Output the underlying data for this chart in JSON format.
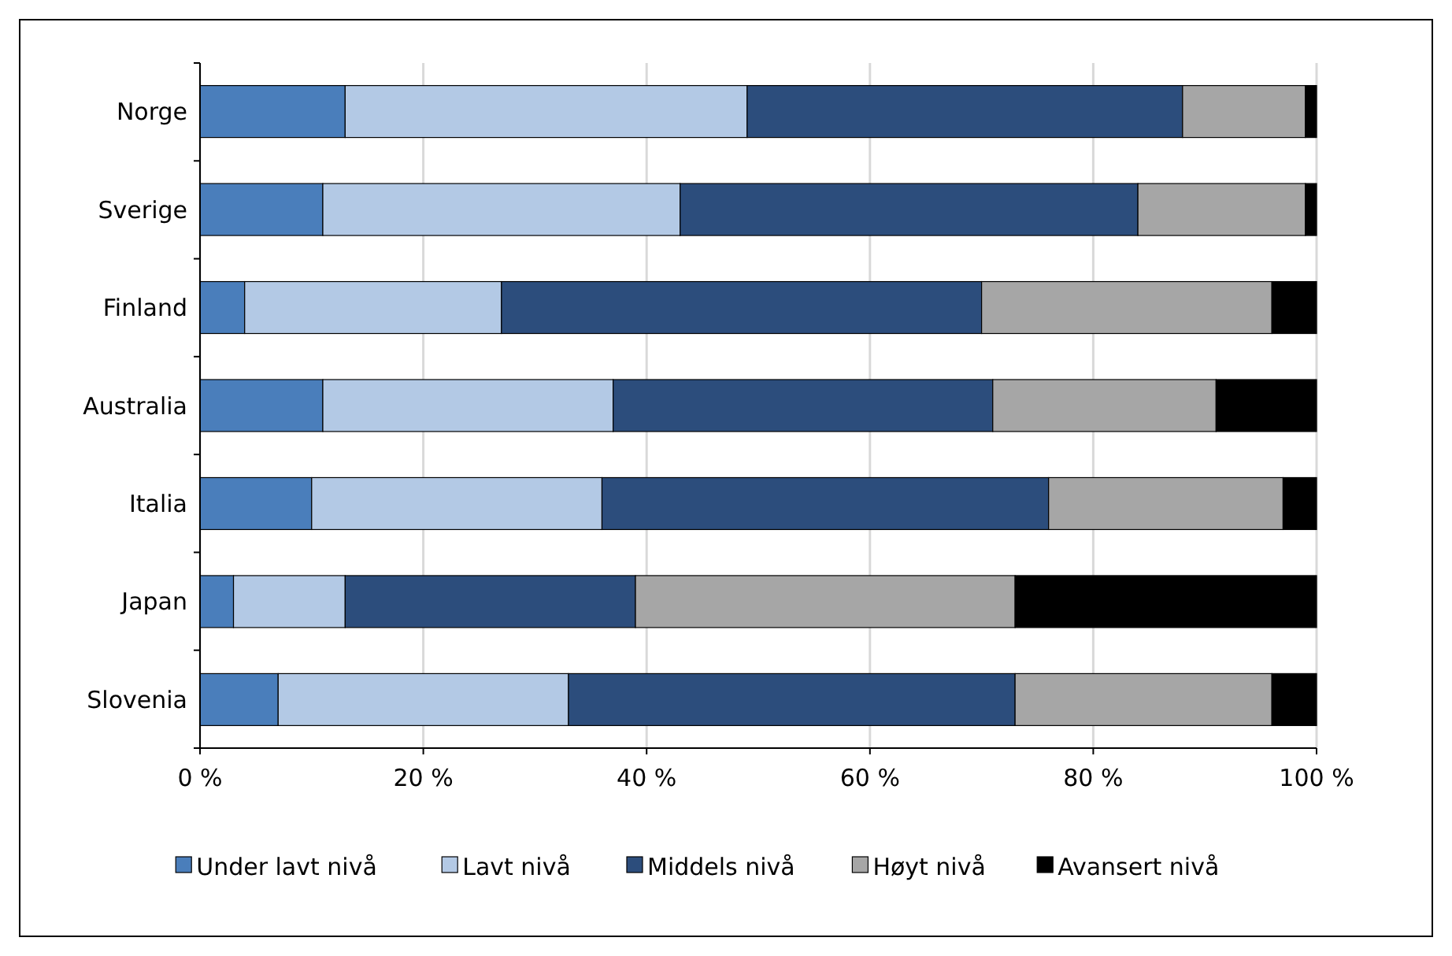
{
  "chart_data": {
    "type": "bar",
    "orientation": "horizontal",
    "stacked": true,
    "categories": [
      "Norge",
      "Sverige",
      "Finland",
      "Australia",
      "Italia",
      "Japan",
      "Slovenia"
    ],
    "series": [
      {
        "name": "Under lavt nivå",
        "color": "#4a7ebb",
        "values": [
          13,
          11,
          4,
          11,
          10,
          3,
          7
        ]
      },
      {
        "name": "Lavt nivå",
        "color": "#b3c9e5",
        "values": [
          36,
          32,
          23,
          26,
          26,
          10,
          26
        ]
      },
      {
        "name": "Middels nivå",
        "color": "#2c4d7c",
        "values": [
          39,
          41,
          43,
          34,
          40,
          26,
          40
        ]
      },
      {
        "name": "Høyt nivå",
        "color": "#a6a6a6",
        "values": [
          11,
          15,
          26,
          20,
          21,
          34,
          23
        ]
      },
      {
        "name": "Avansert nivå",
        "color": "#000000",
        "values": [
          1,
          1,
          4,
          9,
          3,
          27,
          4
        ]
      }
    ],
    "xlim": [
      0,
      100
    ],
    "xticks": [
      {
        "value": 0,
        "label": "0 %"
      },
      {
        "value": 20,
        "label": "20 %"
      },
      {
        "value": 40,
        "label": "40 %"
      },
      {
        "value": 60,
        "label": "60 %"
      },
      {
        "value": 80,
        "label": "80 %"
      },
      {
        "value": 100,
        "label": "100 %"
      }
    ],
    "grid": "x",
    "legend": "bottom"
  }
}
